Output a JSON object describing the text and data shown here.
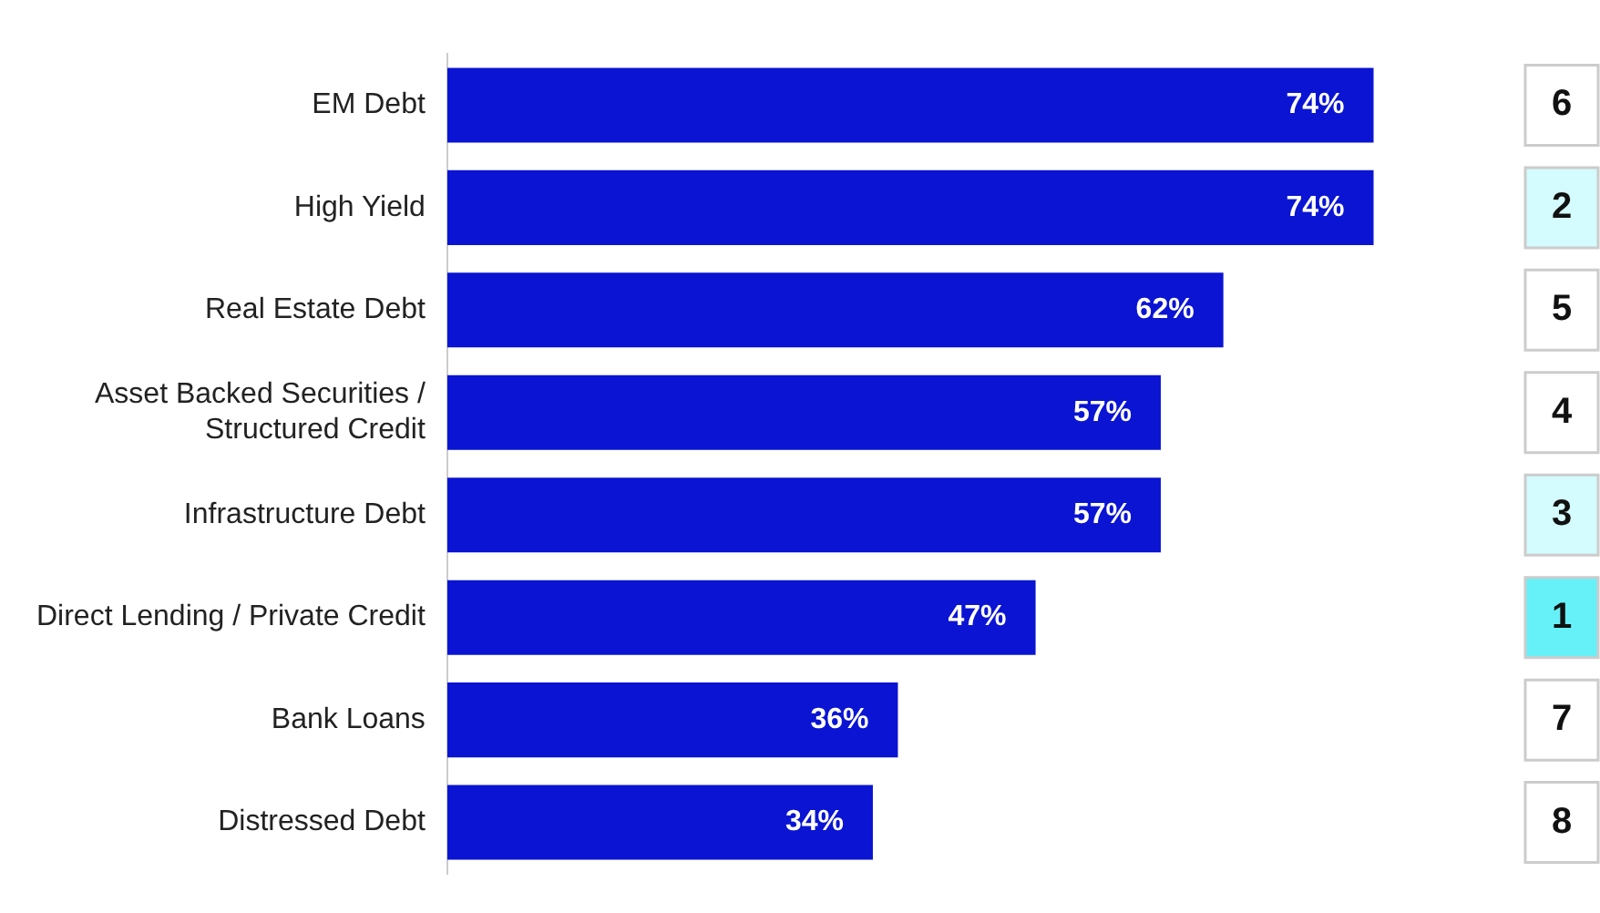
{
  "chart_data": {
    "type": "bar",
    "orientation": "horizontal",
    "categories": [
      "EM Debt",
      "High Yield",
      "Real Estate Debt",
      "Asset Backed Securities / Structured Credit",
      "Infrastructure Debt",
      "Direct Lending / Private Credit",
      "Bank Loans",
      "Distressed Debt"
    ],
    "values": [
      74,
      74,
      62,
      57,
      57,
      47,
      36,
      34
    ],
    "value_labels": [
      "74%",
      "74%",
      "62%",
      "57%",
      "57%",
      "47%",
      "36%",
      "34%"
    ],
    "color": "#0a14d2",
    "annotations": [
      "6",
      "2",
      "5",
      "4",
      "3",
      "1",
      "7",
      "8"
    ],
    "grid": false,
    "legend": false
  }
}
